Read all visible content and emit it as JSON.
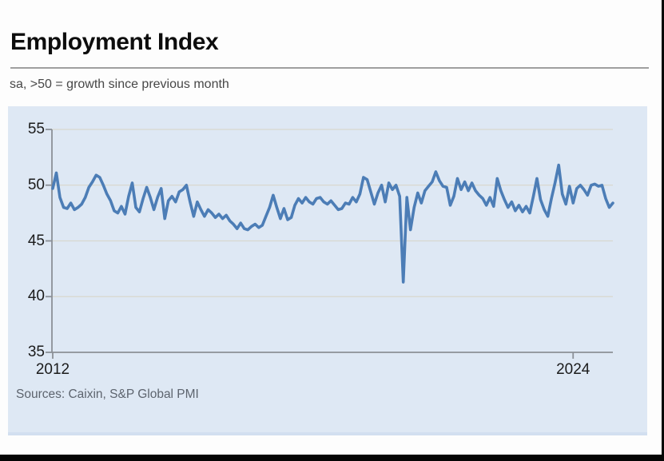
{
  "page": {
    "title": "Employment Index",
    "subtitle": "sa, >50 = growth since previous month",
    "source": "Sources: Caixin, S&P Global PMI"
  },
  "chart_data": {
    "type": "line",
    "title": "Employment Index",
    "subtitle": "sa, >50 = growth since previous month",
    "source": "Sources: Caixin, S&P Global PMI",
    "frequency": "monthly",
    "x_start": "2012-01",
    "x_end": "2024-12",
    "ylim": [
      35,
      55
    ],
    "y_ticks": [
      55,
      50,
      45,
      40,
      35
    ],
    "grid_values": [
      55,
      50,
      45,
      40
    ],
    "x_tick_labels": [
      "2012",
      "2024"
    ],
    "x_tick_month_index": [
      0,
      144
    ],
    "legend": "none",
    "grid": "horizontal",
    "colors": {
      "line": "#4c7db6",
      "panel_bg": "#dee8f4",
      "grid": "#d8d8ce",
      "axis": "#8b9097",
      "tick_text": "#1b1b1b"
    },
    "series": [
      {
        "name": "Employment Index",
        "values": [
          49.7,
          51.1,
          48.9,
          48.0,
          47.9,
          48.4,
          47.8,
          48.0,
          48.3,
          48.9,
          49.8,
          50.3,
          50.9,
          50.7,
          50.0,
          49.2,
          48.6,
          47.7,
          47.5,
          48.1,
          47.4,
          49.0,
          50.2,
          48.0,
          47.6,
          48.8,
          49.8,
          48.9,
          47.8,
          48.9,
          49.7,
          47.0,
          48.6,
          49.0,
          48.5,
          49.4,
          49.6,
          50.0,
          48.5,
          47.2,
          48.5,
          47.8,
          47.2,
          47.8,
          47.5,
          47.1,
          47.4,
          47.0,
          47.3,
          46.8,
          46.5,
          46.1,
          46.6,
          46.1,
          46.0,
          46.3,
          46.5,
          46.2,
          46.4,
          47.2,
          48.0,
          49.1,
          48.0,
          47.0,
          47.9,
          46.9,
          47.1,
          48.2,
          48.8,
          48.4,
          48.9,
          48.5,
          48.3,
          48.8,
          48.9,
          48.5,
          48.3,
          48.6,
          48.2,
          47.8,
          47.9,
          48.4,
          48.3,
          48.9,
          48.5,
          49.2,
          50.7,
          50.5,
          49.4,
          48.3,
          49.3,
          50.0,
          48.5,
          50.2,
          49.6,
          50.0,
          49.0,
          41.3,
          48.9,
          46.0,
          48.0,
          49.3,
          48.4,
          49.5,
          49.9,
          50.3,
          51.2,
          50.4,
          49.9,
          49.8,
          48.2,
          49.0,
          50.6,
          49.6,
          50.3,
          49.5,
          50.2,
          49.5,
          49.1,
          48.8,
          48.2,
          48.9,
          48.1,
          50.6,
          49.5,
          48.7,
          48.0,
          48.5,
          47.7,
          48.2,
          47.6,
          48.1,
          47.5,
          49.0,
          50.6,
          48.7,
          47.8,
          47.2,
          48.8,
          50.2,
          51.8,
          49.2,
          48.3,
          49.9,
          48.4,
          49.7,
          50.0,
          49.6,
          49.1,
          50.0,
          50.1,
          49.9,
          50.0,
          48.8,
          48.0,
          48.4
        ]
      }
    ]
  }
}
